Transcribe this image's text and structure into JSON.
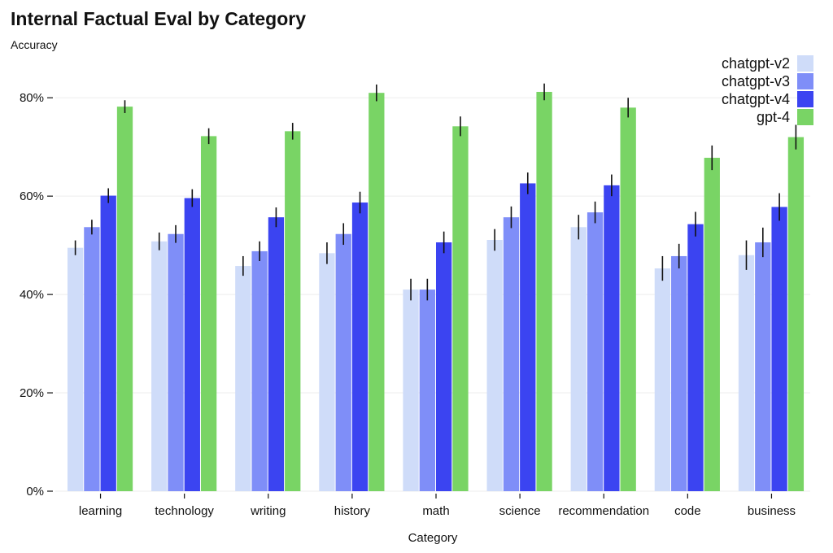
{
  "chart_data": {
    "type": "bar",
    "title": "Internal Factual Eval by Category",
    "ylabel": "Accuracy",
    "xlabel": "Category",
    "ylim": [
      0,
      0.85
    ],
    "y_ticks": [
      {
        "value": 0,
        "label": "0%"
      },
      {
        "value": 0.2,
        "label": "20%"
      },
      {
        "value": 0.4,
        "label": "40%"
      },
      {
        "value": 0.6,
        "label": "60%"
      },
      {
        "value": 0.8,
        "label": "80%"
      }
    ],
    "grid": true,
    "legend_position": "top-right",
    "categories": [
      "learning",
      "technology",
      "writing",
      "history",
      "math",
      "science",
      "recommendation",
      "code",
      "business"
    ],
    "series": [
      {
        "name": "chatgpt-v2",
        "color": "#cfdcf9",
        "values": [
          0.495,
          0.508,
          0.458,
          0.484,
          0.41,
          0.511,
          0.537,
          0.453,
          0.48
        ],
        "errors": [
          0.015,
          0.018,
          0.02,
          0.022,
          0.022,
          0.022,
          0.025,
          0.025,
          0.03
        ]
      },
      {
        "name": "chatgpt-v3",
        "color": "#7f8ef8",
        "values": [
          0.537,
          0.523,
          0.488,
          0.523,
          0.41,
          0.557,
          0.567,
          0.478,
          0.506
        ],
        "errors": [
          0.015,
          0.018,
          0.02,
          0.022,
          0.022,
          0.022,
          0.022,
          0.025,
          0.03
        ]
      },
      {
        "name": "chatgpt-v4",
        "color": "#3b44f1",
        "values": [
          0.601,
          0.596,
          0.557,
          0.587,
          0.506,
          0.626,
          0.622,
          0.543,
          0.578
        ],
        "errors": [
          0.015,
          0.018,
          0.02,
          0.022,
          0.022,
          0.022,
          0.022,
          0.025,
          0.028
        ]
      },
      {
        "name": "gpt-4",
        "color": "#79d465",
        "values": [
          0.782,
          0.722,
          0.732,
          0.81,
          0.742,
          0.812,
          0.78,
          0.678,
          0.72
        ],
        "errors": [
          0.013,
          0.016,
          0.017,
          0.017,
          0.02,
          0.017,
          0.02,
          0.025,
          0.025
        ]
      }
    ]
  }
}
